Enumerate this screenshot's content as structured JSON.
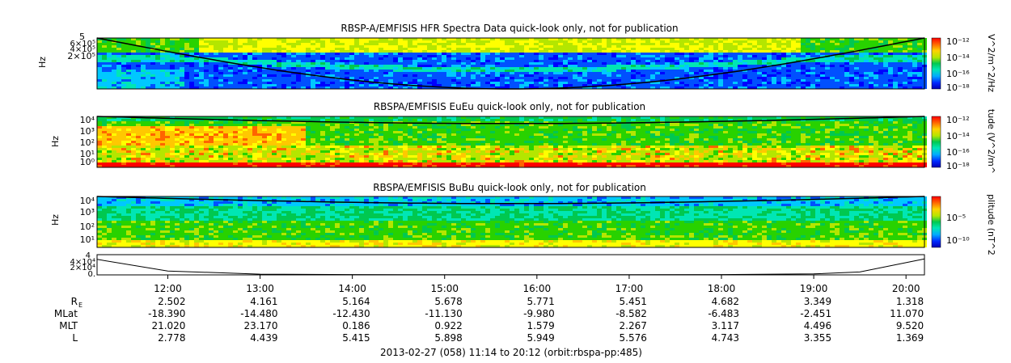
{
  "page": {
    "footer": "2013-02-27 (058) 11:14 to 20:12 (orbit:rbspa-pp:485)"
  },
  "colors": {
    "colormap": [
      "#0a00b4",
      "#0000ff",
      "#0050ff",
      "#00c8ff",
      "#00e6b4",
      "#00c850",
      "#28d200",
      "#b4e600",
      "#ffff00",
      "#ffc800",
      "#ff6400",
      "#ff0000"
    ],
    "background_low": "#0028ff",
    "line": "#000000"
  },
  "chart_data": [
    {
      "type": "heatmap",
      "title": "RBSP-A/EMFISIS  HFR Spectra Data quick-look only, not for publication",
      "ylabel": "Hz",
      "y_ticks": [
        "6×10⁵",
        "4×10⁵",
        "2×10⁵"
      ],
      "y_top_label": "5",
      "colorbar": {
        "label": "V^2/m^2/Hz",
        "ticks": [
          "10⁻¹²",
          "10⁻¹⁴",
          "10⁻¹⁶",
          "10⁻¹⁸"
        ],
        "range_exp": [
          -12,
          -18
        ]
      }
    },
    {
      "type": "heatmap",
      "title": "RBSPA/EMFISIS  EuEu quick-look only, not for publication",
      "ylabel": "Hz",
      "y_ticks": [
        "10⁴",
        "10³",
        "10²",
        "10¹",
        "10⁰"
      ],
      "colorbar": {
        "label": "tude (V^2/m^",
        "ticks": [
          "10⁻¹²",
          "10⁻¹⁴",
          "10⁻¹⁶",
          "10⁻¹⁸"
        ],
        "range_exp": [
          -12,
          -18
        ]
      }
    },
    {
      "type": "heatmap",
      "title": "RBSPA/EMFISIS  BuBu quick-look only, not for publication",
      "ylabel": "Hz",
      "y_ticks": [
        "10⁴",
        "10³",
        "10²",
        "10¹"
      ],
      "colorbar": {
        "label": "plitude (nT^2",
        "ticks": [
          "10⁻⁵",
          "10⁻¹⁰"
        ],
        "range_exp": [
          -5,
          -10
        ]
      }
    },
    {
      "type": "line",
      "title": "",
      "y_ticks": [
        "4×10⁴",
        "2×10⁴",
        "0."
      ],
      "y_top_label": "4",
      "ylim": [
        0,
        40000
      ],
      "x": [
        "11:14",
        "12:00",
        "13:00",
        "14:00",
        "15:00",
        "16:00",
        "17:00",
        "18:00",
        "19:00",
        "19:30",
        "20:12"
      ],
      "values": [
        32000,
        8000,
        1500,
        600,
        400,
        350,
        400,
        700,
        2000,
        6000,
        33000
      ]
    }
  ],
  "time_axis": {
    "start": "11:14",
    "end": "20:12",
    "labels": [
      "12:00",
      "13:00",
      "14:00",
      "15:00",
      "16:00",
      "17:00",
      "18:00",
      "19:00",
      "20:00"
    ]
  },
  "ephemeris": [
    {
      "label": "R",
      "sub": "E",
      "values": [
        "2.502",
        "4.161",
        "5.164",
        "5.678",
        "5.771",
        "5.451",
        "4.682",
        "3.349",
        "1.318"
      ]
    },
    {
      "label": "MLat",
      "sub": "",
      "values": [
        "-18.390",
        "-14.480",
        "-12.430",
        "-11.130",
        "-9.980",
        "-8.582",
        "-6.483",
        "-2.451",
        "11.070"
      ]
    },
    {
      "label": "MLT",
      "sub": "",
      "values": [
        "21.020",
        "23.170",
        "0.186",
        "0.922",
        "1.579",
        "2.267",
        "3.117",
        "4.496",
        "9.520"
      ]
    },
    {
      "label": "L",
      "sub": "",
      "values": [
        "2.778",
        "4.439",
        "5.415",
        "5.898",
        "5.949",
        "5.576",
        "4.743",
        "3.355",
        "1.369"
      ]
    }
  ]
}
